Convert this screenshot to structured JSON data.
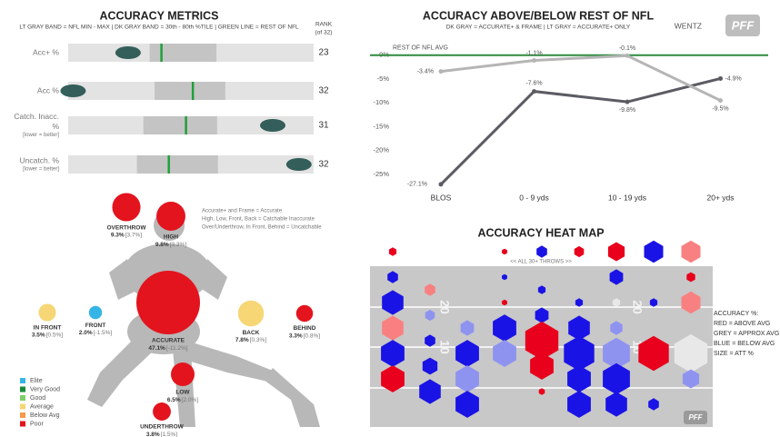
{
  "brand": "PFF",
  "chart_data": [
    {
      "type": "bullet",
      "title": "ACCURACY METRICS",
      "subtitle": "LT GRAY BAND = NFL MIN - MAX | DK GRAY BAND = 30th - 80th %TILE | GREEN LINE = REST OF NFL",
      "rank_label": "RANK",
      "rank_sublabel": "(of 32)",
      "band_color": "#e3e3e3",
      "pct_color": "#c4c4c4",
      "line_color": "#1fa03a",
      "player_color": "#1f4f4a",
      "rows": [
        {
          "label": [
            "Acc+ %"
          ],
          "rank": 23,
          "nfl_range": [
            60,
            85
          ],
          "pct_30_80": [
            68.3,
            75.1
          ],
          "rest_of_nfl": 69.5,
          "player": 66.1
        },
        {
          "label": [
            "Acc %"
          ],
          "rank": 32,
          "nfl_range": [
            55,
            80
          ],
          "pct_30_80": [
            63.8,
            71.0
          ],
          "rest_of_nfl": 67.7,
          "player": 55.5
        },
        {
          "label": [
            "Catch. Inacc.",
            "%"
          ],
          "note": "[lower = better]",
          "rank": 31,
          "nfl_range": [
            5,
            20
          ],
          "pct_30_80": [
            9.6,
            14.1
          ],
          "rest_of_nfl": 12.2,
          "player": 17.5
        },
        {
          "label": [
            "Uncatch. %"
          ],
          "note": "[lower = better]",
          "rank": 32,
          "nfl_range": [
            2,
            12
          ],
          "pct_30_80": [
            4.8,
            8.1
          ],
          "rest_of_nfl": 6.1,
          "player": 11.4
        }
      ]
    },
    {
      "type": "line",
      "title": "ACCURACY ABOVE/BELOW REST OF NFL",
      "subtitle": "DK GRAY = ACCURATE+ & FRAME | LT GRAY = ACCURATE+ ONLY",
      "player": "WENTZ",
      "categories": [
        "BLOS",
        "0 - 9 yds",
        "10 - 19 yds",
        "20+ yds"
      ],
      "reference_label": "REST OF NFL AVG",
      "reference_value": 0,
      "reference_color": "#2e8b3e",
      "series": [
        {
          "color": "#5b5b63",
          "values": [
            -27.1,
            -7.6,
            -9.8,
            -4.9
          ],
          "value_labels": [
            "-27.1%",
            "-7.6%",
            "-9.8%",
            "-4.9%"
          ]
        },
        {
          "color": "#b5b5b5",
          "values": [
            -3.4,
            -1.1,
            -0.1,
            -9.5
          ],
          "value_labels": [
            "-3.4%",
            "-1.1%",
            "-0.1%",
            "-9.5%"
          ]
        }
      ],
      "ylim": [
        -27.5,
        3
      ],
      "yticks": [
        {
          "value": 0,
          "label": "0%"
        },
        {
          "value": -5,
          "label": "-5%"
        },
        {
          "value": -10,
          "label": "-10%"
        },
        {
          "value": -15,
          "label": "-15%"
        },
        {
          "value": -20,
          "label": "-20%"
        },
        {
          "value": -25,
          "label": "-25%"
        }
      ]
    },
    {
      "type": "bubble",
      "notes": [
        "Accurate+ and Frame = Accurate",
        "High, Low, Front, Back = Catchable Inaccurate",
        "Over/Underthrow, In Front, Behind = Uncatchable"
      ],
      "categories": [
        "OVERTHROW",
        "HIGH",
        "IN FRONT",
        "FRONT",
        "ACCURATE",
        "BACK",
        "BEHIND",
        "LOW",
        "UNDERTHROW"
      ],
      "values": [
        9.3,
        9.8,
        3.5,
        2.0,
        47.1,
        7.8,
        3.3,
        6.5,
        3.8
      ],
      "value_labels": [
        "9.3%",
        "9.8%",
        "3.5%",
        "2.0%",
        "47.1%",
        "7.8%",
        "3.3%",
        "6.5%",
        "3.8%"
      ],
      "diffs": [
        3.7,
        3.3,
        0.5,
        -1.5,
        -11.2,
        0.3,
        0.8,
        2.0,
        1.5
      ],
      "diff_labels": [
        "[3.7%]",
        "[3.3%]",
        "[0.5%]",
        "[-1.5%]",
        "[-11.2%]",
        "[0.3%]",
        "[0.8%]",
        "[2.0%]",
        "[1.5%]"
      ],
      "colors": [
        "#e3141e",
        "#e3141e",
        "#f6d675",
        "#35b5e5",
        "#e3141e",
        "#f6d675",
        "#e3141e",
        "#e3141e",
        "#e3141e"
      ],
      "legend": [
        {
          "name": "Elite",
          "color": "#35b5e5"
        },
        {
          "name": "Very Good",
          "color": "#1a8a3a"
        },
        {
          "name": "Good",
          "color": "#7ccf6b"
        },
        {
          "name": "Average",
          "color": "#f6d675"
        },
        {
          "name": "Below Avg",
          "color": "#f59a4a"
        },
        {
          "name": "Poor",
          "color": "#e3141e"
        }
      ]
    },
    {
      "type": "hexbin",
      "title": "ACCURACY HEAT MAP",
      "subtitle": "<< ALL 30+ THROWS >>",
      "legend_lines": [
        "ACCURACY %:",
        "RED = ABOVE AVG",
        "GREY = APPROX AVG",
        "BLUE = BELOW AVG",
        "SIZE = ATT %"
      ],
      "yard_labels": [
        "20",
        "10"
      ],
      "x": [
        0,
        0,
        0,
        0,
        0,
        0,
        1,
        1,
        1,
        1,
        1,
        2,
        2,
        2,
        2,
        3,
        3,
        3,
        3,
        3,
        4,
        4,
        4,
        4,
        4,
        4,
        5,
        5,
        5,
        5,
        5,
        5,
        6,
        6,
        6,
        6,
        6,
        6,
        6,
        7,
        7,
        7,
        7,
        8,
        8,
        8,
        8,
        8
      ],
      "y": [
        0,
        2,
        4,
        6,
        8,
        10,
        3,
        5,
        7,
        9,
        11,
        6,
        8,
        10,
        12,
        0,
        2,
        4,
        6,
        8,
        0,
        3,
        5,
        7,
        9,
        11,
        0,
        4,
        6,
        8,
        10,
        12,
        0,
        2,
        4,
        6,
        8,
        10,
        12,
        0,
        4,
        8,
        12,
        0,
        2,
        4,
        8,
        10
      ],
      "size": [
        0.3,
        0.6,
        2.5,
        2.5,
        3,
        3,
        0.6,
        0.5,
        0.6,
        1.2,
        2.5,
        1,
        3,
        3,
        3,
        0.15,
        0.15,
        0.15,
        3,
        3,
        0.6,
        0.3,
        1,
        6,
        3,
        0.2,
        0.5,
        0.3,
        2.5,
        5,
        3,
        3,
        1.5,
        1,
        0.3,
        0.8,
        4,
        4,
        2.5,
        2,
        0.3,
        5,
        0.6,
        2,
        0.4,
        2,
        6,
        1.5
      ],
      "colors": [
        "#e8001c",
        "#1a13e6",
        "#1a13e6",
        "#f98080",
        "#1a13e6",
        "#e8001c",
        "#f98080",
        "#8f93f0",
        "#1a13e6",
        "#1a13e6",
        "#1a13e6",
        "#8f93f0",
        "#1a13e6",
        "#8f93f0",
        "#1a13e6",
        "#e8001c",
        "#1a13e6",
        "#e8001c",
        "#1a13e6",
        "#8f93f0",
        "#1a13e6",
        "#1a13e6",
        "#1a13e6",
        "#e8001c",
        "#e8001c",
        "#e8001c",
        "#e8001c",
        "#1a13e6",
        "#1a13e6",
        "#1a13e6",
        "#1a13e6",
        "#1a13e6",
        "#e8001c",
        "#1a13e6",
        "#e8e8e8",
        "#8f93f0",
        "#8f93f0",
        "#1a13e6",
        "#1a13e6",
        "#1a13e6",
        "#1a13e6",
        "#e8001c",
        "#1a13e6",
        "#f98080",
        "#e8001c",
        "#f98080",
        "#e8e8e8",
        "#8f93f0"
      ]
    }
  ]
}
